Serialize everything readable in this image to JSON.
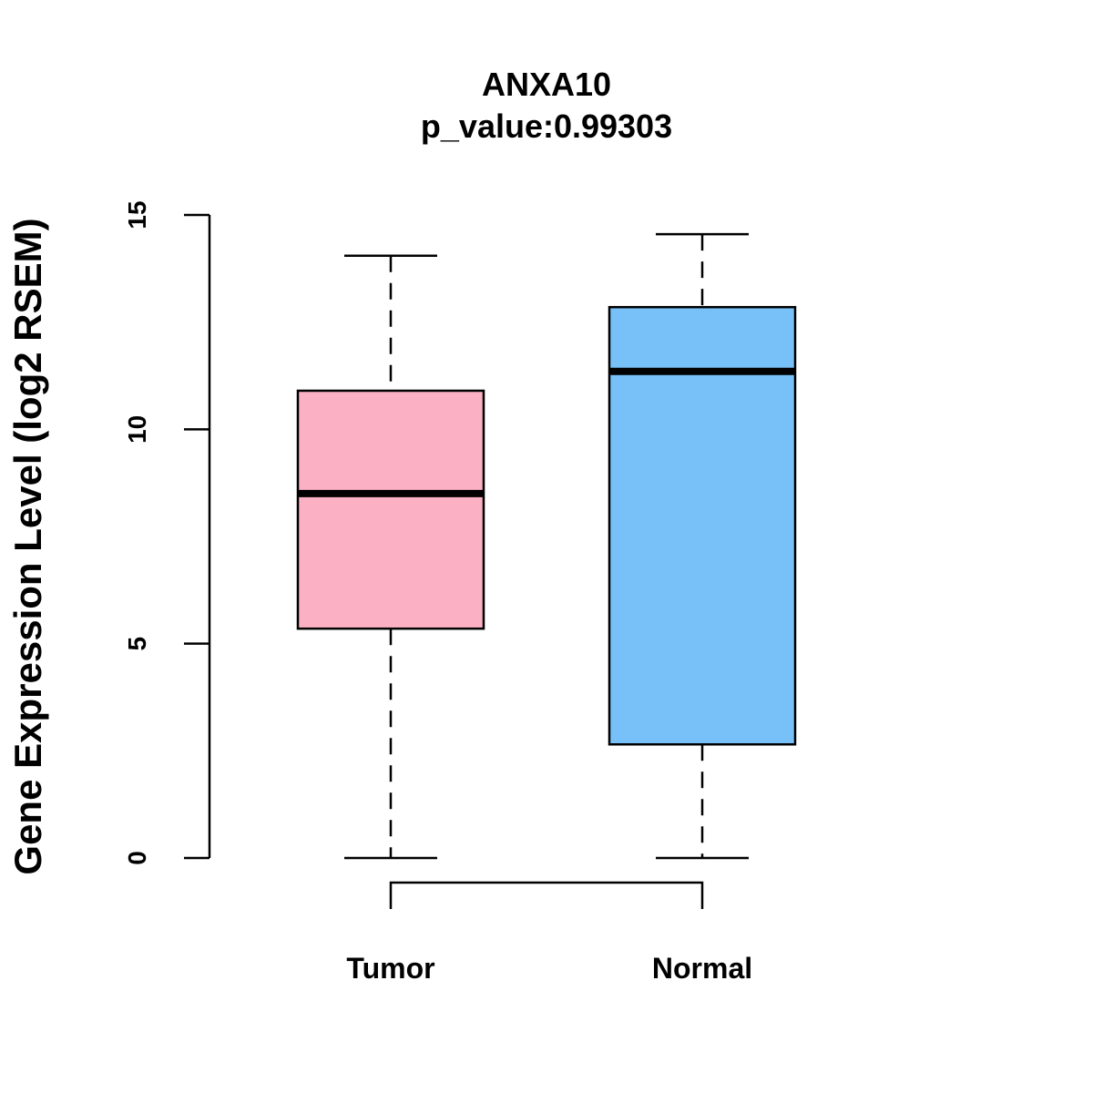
{
  "chart_data": {
    "type": "box",
    "title": "ANXA10",
    "subtitle": "p_value:0.99303",
    "xlabel": "",
    "ylabel": "Gene Expression Level (log2 RSEM)",
    "ylim": [
      0,
      15
    ],
    "yticks": [
      0,
      5,
      10,
      15
    ],
    "ytick_labels": [
      "0",
      "5",
      "10",
      "15"
    ],
    "grid": false,
    "categories": [
      "Tumor",
      "Normal"
    ],
    "boxes": [
      {
        "name": "Tumor",
        "color": "#FBB1C3",
        "whisker_low": 0,
        "q1": 5.35,
        "median": 8.5,
        "q3": 10.9,
        "whisker_high": 14.05
      },
      {
        "name": "Normal",
        "color": "#78C0F8",
        "whisker_low": 0,
        "q1": 2.65,
        "median": 11.35,
        "q3": 12.85,
        "whisker_high": 14.55
      }
    ],
    "comparison_bracket": [
      "Tumor",
      "Normal"
    ]
  }
}
